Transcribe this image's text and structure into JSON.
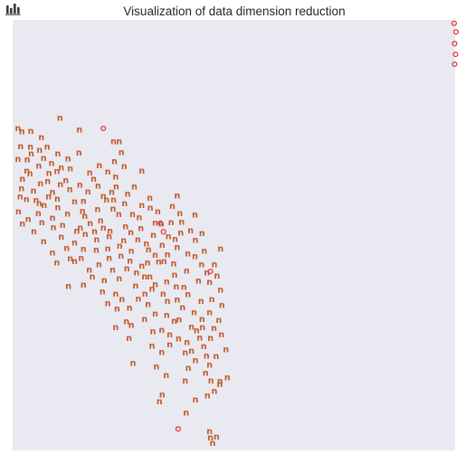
{
  "chart_data": {
    "type": "scatter",
    "title": "Visualization of data dimension reduction",
    "xlabel": "",
    "ylabel": "",
    "xlim": [
      0,
      1
    ],
    "ylim": [
      0,
      1
    ],
    "grid": false,
    "icon": "bar-chart-icon",
    "background_color": "#e9e9f1",
    "series": [
      {
        "marker": "letter",
        "marker_text": "n",
        "color": "#bf5a28",
        "points": [
          [
            0.107,
            0.773
          ],
          [
            0.151,
            0.746
          ],
          [
            0.021,
            0.742
          ],
          [
            0.041,
            0.743
          ],
          [
            0.065,
            0.728
          ],
          [
            0.012,
            0.749
          ],
          [
            0.018,
            0.707
          ],
          [
            0.04,
            0.706
          ],
          [
            0.078,
            0.706
          ],
          [
            0.15,
            0.692
          ],
          [
            0.012,
            0.677
          ],
          [
            0.033,
            0.676
          ],
          [
            0.07,
            0.68
          ],
          [
            0.102,
            0.69
          ],
          [
            0.125,
            0.679
          ],
          [
            0.241,
            0.718
          ],
          [
            0.246,
            0.693
          ],
          [
            0.228,
            0.719
          ],
          [
            0.252,
            0.661
          ],
          [
            0.292,
            0.65
          ],
          [
            0.039,
            0.644
          ],
          [
            0.079,
            0.626
          ],
          [
            0.1,
            0.649
          ],
          [
            0.12,
            0.628
          ],
          [
            0.152,
            0.618
          ],
          [
            0.17,
            0.602
          ],
          [
            0.183,
            0.631
          ],
          [
            0.224,
            0.601
          ],
          [
            0.193,
            0.616
          ],
          [
            0.215,
            0.648
          ],
          [
            0.23,
            0.672
          ],
          [
            0.196,
            0.663
          ],
          [
            0.02,
            0.609
          ],
          [
            0.031,
            0.584
          ],
          [
            0.047,
            0.604
          ],
          [
            0.053,
            0.582
          ],
          [
            0.071,
            0.57
          ],
          [
            0.058,
            0.551
          ],
          [
            0.013,
            0.556
          ],
          [
            0.09,
            0.601
          ],
          [
            0.102,
            0.565
          ],
          [
            0.124,
            0.55
          ],
          [
            0.16,
            0.58
          ],
          [
            0.192,
            0.561
          ],
          [
            0.199,
            0.535
          ],
          [
            0.212,
            0.583
          ],
          [
            0.227,
            0.562
          ],
          [
            0.24,
            0.549
          ],
          [
            0.255,
            0.521
          ],
          [
            0.26,
            0.597
          ],
          [
            0.286,
            0.542
          ],
          [
            0.336,
            0.527
          ],
          [
            0.358,
            0.53
          ],
          [
            0.352,
            0.498
          ],
          [
            0.372,
            0.473
          ],
          [
            0.318,
            0.501
          ],
          [
            0.382,
            0.532
          ],
          [
            0.292,
            0.57
          ],
          [
            0.31,
            0.587
          ],
          [
            0.372,
            0.592
          ],
          [
            0.066,
            0.53
          ],
          [
            0.092,
            0.519
          ],
          [
            0.11,
            0.497
          ],
          [
            0.14,
            0.483
          ],
          [
            0.153,
            0.518
          ],
          [
            0.185,
            0.509
          ],
          [
            0.218,
            0.498
          ],
          [
            0.215,
            0.47
          ],
          [
            0.242,
            0.476
          ],
          [
            0.268,
            0.464
          ],
          [
            0.283,
            0.491
          ],
          [
            0.307,
            0.467
          ],
          [
            0.305,
            0.437
          ],
          [
            0.33,
            0.439
          ],
          [
            0.342,
            0.44
          ],
          [
            0.364,
            0.435
          ],
          [
            0.393,
            0.418
          ],
          [
            0.427,
            0.433
          ],
          [
            0.433,
            0.464
          ],
          [
            0.413,
            0.49
          ],
          [
            0.402,
            0.512
          ],
          [
            0.47,
            0.47
          ],
          [
            0.456,
            0.433
          ],
          [
            0.09,
            0.46
          ],
          [
            0.13,
            0.446
          ],
          [
            0.155,
            0.447
          ],
          [
            0.173,
            0.42
          ],
          [
            0.195,
            0.433
          ],
          [
            0.18,
            0.404
          ],
          [
            0.226,
            0.42
          ],
          [
            0.241,
            0.4
          ],
          [
            0.258,
            0.423
          ],
          [
            0.278,
            0.383
          ],
          [
            0.298,
            0.404
          ],
          [
            0.315,
            0.376
          ],
          [
            0.34,
            0.364
          ],
          [
            0.348,
            0.393
          ],
          [
            0.37,
            0.381
          ],
          [
            0.396,
            0.363
          ],
          [
            0.42,
            0.395
          ],
          [
            0.445,
            0.392
          ],
          [
            0.45,
            0.352
          ],
          [
            0.47,
            0.374
          ],
          [
            0.16,
            0.386
          ],
          [
            0.203,
            0.37
          ],
          [
            0.126,
            0.382
          ],
          [
            0.233,
            0.364
          ],
          [
            0.236,
            0.33
          ],
          [
            0.264,
            0.332
          ],
          [
            0.284,
            0.353
          ],
          [
            0.306,
            0.34
          ],
          [
            0.322,
            0.318
          ],
          [
            0.348,
            0.315
          ],
          [
            0.365,
            0.301
          ],
          [
            0.384,
            0.333
          ],
          [
            0.41,
            0.321
          ],
          [
            0.428,
            0.306
          ],
          [
            0.445,
            0.321
          ],
          [
            0.466,
            0.304
          ],
          [
            0.472,
            0.27
          ],
          [
            0.233,
            0.287
          ],
          [
            0.268,
            0.292
          ],
          [
            0.263,
            0.262
          ],
          [
            0.317,
            0.277
          ],
          [
            0.337,
            0.28
          ],
          [
            0.355,
            0.27
          ],
          [
            0.375,
            0.261
          ],
          [
            0.394,
            0.252
          ],
          [
            0.423,
            0.263
          ],
          [
            0.447,
            0.262
          ],
          [
            0.482,
            0.235
          ],
          [
            0.46,
            0.22
          ],
          [
            0.438,
            0.221
          ],
          [
            0.413,
            0.21
          ],
          [
            0.39,
            0.228
          ],
          [
            0.337,
            0.229
          ],
          [
            0.315,
            0.244
          ],
          [
            0.272,
            0.204
          ],
          [
            0.325,
            0.195
          ],
          [
            0.347,
            0.175
          ],
          [
            0.397,
            0.192
          ],
          [
            0.436,
            0.181
          ],
          [
            0.448,
            0.163
          ],
          [
            0.469,
            0.162
          ],
          [
            0.485,
            0.17
          ],
          [
            0.456,
            0.139
          ],
          [
            0.445,
            0.2
          ],
          [
            0.332,
            0.114
          ],
          [
            0.392,
            0.088
          ],
          [
            0.452,
            0.018
          ],
          [
            0.461,
            0.033
          ],
          [
            0.445,
            0.045
          ],
          [
            0.468,
            0.154
          ],
          [
            0.44,
            0.128
          ],
          [
            0.35,
            0.348
          ],
          [
            0.372,
            0.351
          ],
          [
            0.404,
            0.288
          ],
          [
            0.416,
            0.279
          ],
          [
            0.426,
            0.348
          ],
          [
            0.387,
            0.38
          ],
          [
            0.366,
            0.409
          ],
          [
            0.31,
            0.404
          ],
          [
            0.292,
            0.43
          ],
          [
            0.265,
            0.441
          ],
          [
            0.245,
            0.453
          ],
          [
            0.218,
            0.448
          ],
          [
            0.189,
            0.466
          ],
          [
            0.16,
            0.468
          ],
          [
            0.122,
            0.471
          ],
          [
            0.14,
            0.44
          ],
          [
            0.1,
            0.437
          ],
          [
            0.07,
            0.486
          ],
          [
            0.048,
            0.509
          ],
          [
            0.035,
            0.538
          ],
          [
            0.022,
            0.527
          ],
          [
            0.032,
            0.65
          ],
          [
            0.059,
            0.662
          ],
          [
            0.063,
            0.621
          ],
          [
            0.082,
            0.645
          ],
          [
            0.108,
            0.619
          ],
          [
            0.129,
            0.607
          ],
          [
            0.14,
            0.579
          ],
          [
            0.163,
            0.545
          ],
          [
            0.175,
            0.528
          ],
          [
            0.205,
            0.518
          ],
          [
            0.22,
            0.51
          ],
          [
            0.251,
            0.488
          ],
          [
            0.267,
            0.507
          ],
          [
            0.29,
            0.517
          ],
          [
            0.302,
            0.481
          ],
          [
            0.322,
            0.455
          ],
          [
            0.338,
            0.478
          ],
          [
            0.35,
            0.456
          ],
          [
            0.396,
            0.458
          ],
          [
            0.412,
            0.452
          ],
          [
            0.439,
            0.414
          ],
          [
            0.462,
            0.407
          ],
          [
            0.473,
            0.338
          ],
          [
            0.455,
            0.285
          ],
          [
            0.432,
            0.243
          ],
          [
            0.404,
            0.232
          ],
          [
            0.376,
            0.305
          ],
          [
            0.355,
            0.247
          ],
          [
            0.298,
            0.306
          ],
          [
            0.257,
            0.3
          ],
          [
            0.247,
            0.352
          ],
          [
            0.207,
            0.396
          ],
          [
            0.215,
            0.342
          ],
          [
            0.19,
            0.491
          ],
          [
            0.164,
            0.503
          ],
          [
            0.145,
            0.51
          ],
          [
            0.113,
            0.524
          ],
          [
            0.09,
            0.541
          ],
          [
            0.06,
            0.575
          ],
          [
            0.081,
            0.59
          ],
          [
            0.042,
            0.69
          ],
          [
            0.061,
            0.699
          ],
          [
            0.088,
            0.668
          ],
          [
            0.13,
            0.655
          ],
          [
            0.11,
            0.658
          ],
          [
            0.022,
            0.631
          ],
          [
            0.017,
            0.59
          ],
          [
            0.101,
            0.585
          ],
          [
            0.174,
            0.646
          ],
          [
            0.233,
            0.637
          ],
          [
            0.234,
            0.613
          ],
          [
            0.275,
            0.613
          ],
          [
            0.311,
            0.564
          ],
          [
            0.328,
            0.556
          ],
          [
            0.361,
            0.568
          ],
          [
            0.378,
            0.551
          ],
          [
            0.322,
            0.529
          ],
          [
            0.412,
            0.548
          ],
          [
            0.271,
            0.549
          ],
          [
            0.228,
            0.583
          ],
          [
            0.158,
            0.557
          ],
          [
            0.205,
            0.591
          ],
          [
            0.253,
            0.575
          ],
          [
            0.38,
            0.506
          ],
          [
            0.428,
            0.505
          ],
          [
            0.367,
            0.492
          ],
          [
            0.299,
            0.364
          ],
          [
            0.322,
            0.387
          ],
          [
            0.28,
            0.414
          ],
          [
            0.429,
            0.287
          ],
          [
            0.39,
            0.163
          ],
          [
            0.338,
            0.13
          ],
          [
            0.413,
            0.119
          ],
          [
            0.447,
            0.03
          ]
        ]
      },
      {
        "marker": "circle",
        "marker_text": "",
        "color": "#e8383d",
        "points": [
          [
            0.205,
            0.748
          ],
          [
            0.334,
            0.528
          ],
          [
            0.341,
            0.508
          ],
          [
            0.447,
            0.416
          ],
          [
            0.374,
            0.05
          ],
          [
            0.998,
            0.992
          ],
          [
            1.002,
            0.972
          ],
          [
            0.999,
            0.945
          ],
          [
            1.001,
            0.92
          ],
          [
            0.999,
            0.897
          ]
        ]
      }
    ]
  }
}
